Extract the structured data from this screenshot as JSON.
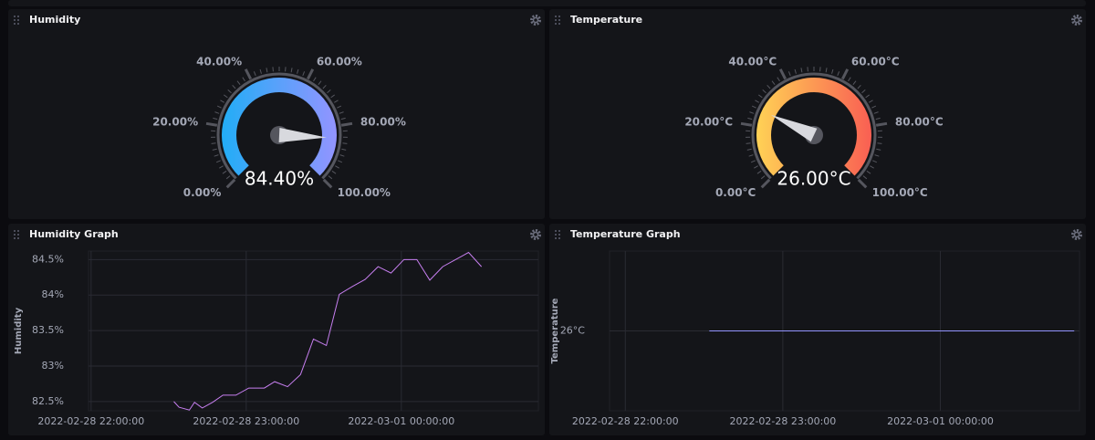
{
  "panels": [
    {
      "title": "Humidity",
      "type": "gauge",
      "value": 84.4,
      "value_label": "84.40%",
      "lim": [
        0,
        100
      ],
      "colors": [
        "#22adf6",
        "#9394ff"
      ],
      "ticks": [
        {
          "value": 0,
          "label": "0.00%"
        },
        {
          "value": 20,
          "label": "20.00%"
        },
        {
          "value": 40,
          "label": "40.00%"
        },
        {
          "value": 60,
          "label": "60.00%"
        },
        {
          "value": 80,
          "label": "80.00%"
        },
        {
          "value": 100,
          "label": "100.00%"
        }
      ]
    },
    {
      "title": "Temperature",
      "type": "gauge",
      "value": 26,
      "value_label": "26.00°C",
      "lim": [
        0,
        100
      ],
      "colors": [
        "#ffd255",
        "#f95f53"
      ],
      "ticks": [
        {
          "value": 0,
          "label": "0.00°C"
        },
        {
          "value": 20,
          "label": "20.00°C"
        },
        {
          "value": 40,
          "label": "40.00°C"
        },
        {
          "value": 60,
          "label": "60.00°C"
        },
        {
          "value": 80,
          "label": "80.00°C"
        },
        {
          "value": 100,
          "label": "100.00°C"
        }
      ]
    },
    {
      "title": "Humidity Graph",
      "type": "line",
      "ylabel": "Humidity",
      "color": "#c77ff0",
      "x": [
        "2022-02-28 22:32:00",
        "2022-02-28 22:34:00",
        "2022-02-28 22:38:00",
        "2022-02-28 22:40:00",
        "2022-02-28 22:43:00",
        "2022-02-28 22:47:00",
        "2022-02-28 22:51:00",
        "2022-02-28 22:56:00",
        "2022-02-28 23:01:00",
        "2022-02-28 23:07:00",
        "2022-02-28 23:11:00",
        "2022-02-28 23:16:00",
        "2022-02-28 23:21:00",
        "2022-02-28 23:26:00",
        "2022-02-28 23:31:00",
        "2022-02-28 23:36:00",
        "2022-02-28 23:41:00",
        "2022-02-28 23:46:00",
        "2022-02-28 23:51:00",
        "2022-02-28 23:56:00",
        "2022-03-01 00:01:00",
        "2022-03-01 00:06:00",
        "2022-03-01 00:11:00",
        "2022-03-01 00:16:00",
        "2022-03-01 00:21:00",
        "2022-03-01 00:26:00",
        "2022-03-01 00:31:00"
      ],
      "values": [
        82.5,
        82.42,
        82.38,
        82.49,
        82.41,
        82.49,
        82.59,
        82.59,
        82.69,
        82.69,
        82.78,
        82.71,
        82.88,
        83.38,
        83.29,
        84.01,
        84.12,
        84.22,
        84.4,
        84.31,
        84.5,
        84.5,
        84.21,
        84.4,
        84.5,
        84.6,
        84.4
      ],
      "xlim": [
        "2022-02-28 21:59:00",
        "2022-03-01 00:53:00"
      ],
      "ylim": [
        82.37,
        84.62
      ],
      "xticks": [
        "2022-02-28 22:00:00",
        "2022-02-28 23:00:00",
        "2022-03-01 00:00:00"
      ],
      "yticks": [
        {
          "value": 82.5,
          "label": "82.5%"
        },
        {
          "value": 83,
          "label": "83%"
        },
        {
          "value": 83.5,
          "label": "83.5%"
        },
        {
          "value": 84,
          "label": "84%"
        },
        {
          "value": 84.5,
          "label": "84.5%"
        }
      ]
    },
    {
      "title": "Temperature Graph",
      "type": "line",
      "ylabel": "Temperature",
      "color": "#9394ff",
      "x": [
        "2022-02-28 22:32:00",
        "2022-03-01 00:51:00"
      ],
      "values": [
        26,
        26
      ],
      "xlim": [
        "2022-02-28 21:54:00",
        "2022-03-01 00:53:00"
      ],
      "ylim": [
        25,
        27
      ],
      "xticks": [
        "2022-02-28 22:00:00",
        "2022-02-28 23:00:00",
        "2022-03-01 00:00:00"
      ],
      "yticks": [
        {
          "value": 26,
          "label": "26°C"
        }
      ]
    }
  ]
}
